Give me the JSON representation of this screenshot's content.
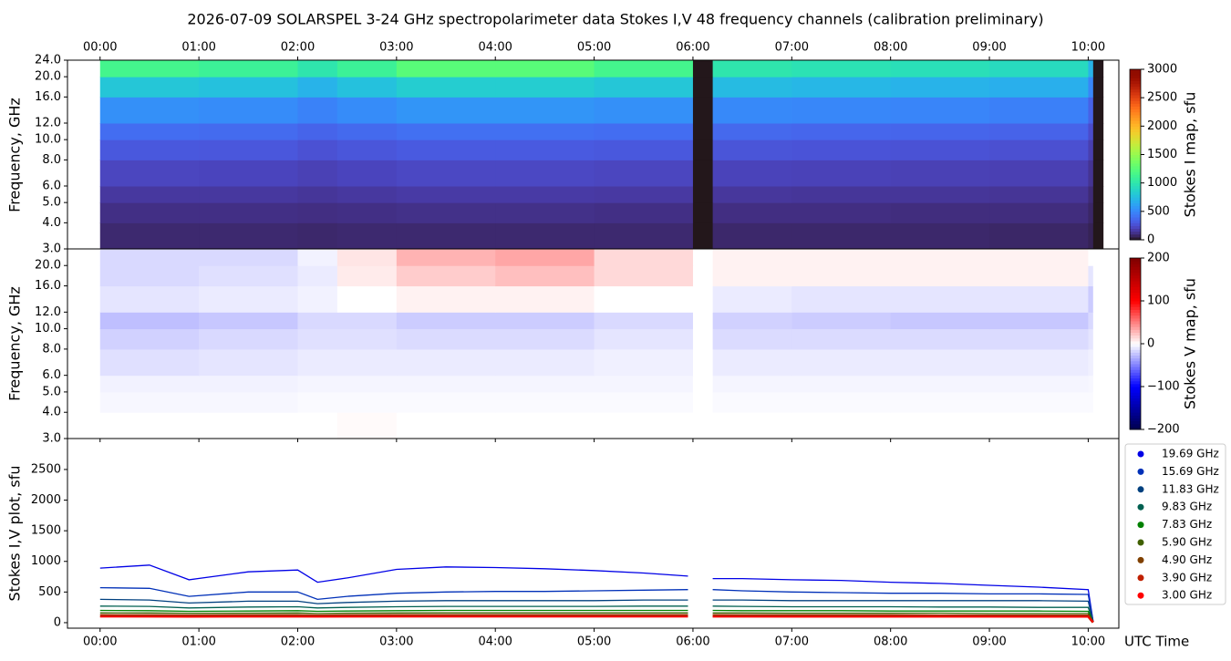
{
  "title": "2026-07-09  SOLARSPEL  3-24 GHz spectropolarimeter data   Stokes I,V   48 frequency channels   (calibration preliminary)",
  "chart_data": [
    {
      "type": "heatmap",
      "ylabel": "Frequency, GHz",
      "yscale": "log",
      "ylim": [
        3,
        24
      ],
      "yticks": [
        {
          "value": 3,
          "label": "3.0"
        },
        {
          "value": 4,
          "label": "4.0"
        },
        {
          "value": 5,
          "label": "5.0"
        },
        {
          "value": 6,
          "label": "6.0"
        },
        {
          "value": 8,
          "label": "8.0"
        },
        {
          "value": 10,
          "label": "10.0"
        },
        {
          "value": 12,
          "label": "12.0"
        },
        {
          "value": 16,
          "label": "16.0"
        },
        {
          "value": 20,
          "label": "20.0"
        },
        {
          "value": 24,
          "label": "24.0"
        }
      ],
      "xlim": [
        -0.33,
        10.31
      ],
      "xtick_position": "top",
      "xticks": [
        {
          "value": 0,
          "label": "00:00"
        },
        {
          "value": 1,
          "label": "01:00"
        },
        {
          "value": 2,
          "label": "02:00"
        },
        {
          "value": 3,
          "label": "03:00"
        },
        {
          "value": 4,
          "label": "04:00"
        },
        {
          "value": 5,
          "label": "05:00"
        },
        {
          "value": 6,
          "label": "06:00"
        },
        {
          "value": 7,
          "label": "07:00"
        },
        {
          "value": 8,
          "label": "08:00"
        },
        {
          "value": 9,
          "label": "09:00"
        },
        {
          "value": 10,
          "label": "10:00"
        }
      ],
      "x_edges": [
        0,
        1,
        2,
        2.4,
        3,
        4,
        5,
        6,
        6.2,
        7,
        8,
        9,
        10,
        10.05,
        10.15
      ],
      "y_edges": [
        3,
        4,
        5,
        6,
        8,
        10,
        12,
        16,
        20,
        24
      ],
      "values": [
        [
          90,
          90,
          85,
          90,
          90,
          90,
          90,
          0,
          85,
          85,
          85,
          80,
          60,
          0
        ],
        [
          120,
          120,
          115,
          120,
          125,
          125,
          120,
          0,
          115,
          115,
          110,
          110,
          80,
          0
        ],
        [
          160,
          160,
          150,
          160,
          170,
          170,
          165,
          0,
          155,
          150,
          150,
          145,
          100,
          0
        ],
        [
          220,
          215,
          200,
          215,
          230,
          230,
          220,
          0,
          210,
          205,
          200,
          195,
          140,
          0
        ],
        [
          300,
          295,
          270,
          290,
          310,
          310,
          300,
          0,
          285,
          280,
          275,
          265,
          190,
          0
        ],
        [
          390,
          380,
          350,
          375,
          400,
          400,
          390,
          0,
          370,
          360,
          355,
          345,
          250,
          0
        ],
        [
          540,
          520,
          480,
          520,
          560,
          560,
          540,
          0,
          510,
          500,
          490,
          470,
          340,
          0
        ],
        [
          800,
          770,
          700,
          770,
          840,
          840,
          800,
          0,
          740,
          720,
          700,
          680,
          500,
          0
        ],
        [
          1150,
          1100,
          1000,
          1100,
          1250,
          1250,
          1150,
          0,
          1000,
          970,
          950,
          920,
          700,
          0
        ]
      ],
      "colorbar": {
        "label": "Stokes I map, sfu",
        "colormap": "turbo",
        "lim": [
          0,
          3000
        ],
        "ticks": [
          0,
          500,
          1000,
          1500,
          2000,
          2500,
          3000
        ]
      }
    },
    {
      "type": "heatmap",
      "ylabel": "Frequency, GHz",
      "yscale": "log",
      "ylim": [
        3,
        24
      ],
      "yticks": [
        {
          "value": 3,
          "label": "3.0"
        },
        {
          "value": 4,
          "label": "4.0"
        },
        {
          "value": 5,
          "label": "5.0"
        },
        {
          "value": 6,
          "label": "6.0"
        },
        {
          "value": 8,
          "label": "8.0"
        },
        {
          "value": 10,
          "label": "10.0"
        },
        {
          "value": 12,
          "label": "12.0"
        },
        {
          "value": 16,
          "label": "16.0"
        },
        {
          "value": 20,
          "label": "20.0"
        }
      ],
      "xlim": [
        -0.33,
        10.31
      ],
      "xtick_labels": false,
      "xticks": [
        0,
        1,
        2,
        3,
        4,
        5,
        6,
        7,
        8,
        9,
        10
      ],
      "x_edges": [
        0,
        1,
        2,
        2.4,
        3,
        4,
        5,
        6,
        6.2,
        7,
        8,
        9,
        10,
        10.05,
        10.15
      ],
      "y_edges": [
        3,
        4,
        5,
        6,
        8,
        10,
        12,
        16,
        20,
        24
      ],
      "values": [
        [
          0,
          0,
          0,
          2,
          0,
          0,
          0,
          0,
          0,
          0,
          0,
          0,
          0,
          0
        ],
        [
          -3,
          -3,
          -2,
          -2,
          -2,
          -2,
          -2,
          0,
          -2,
          -2,
          -2,
          -2,
          -2,
          0
        ],
        [
          -5,
          -5,
          -4,
          -4,
          -4,
          -4,
          -4,
          0,
          -4,
          -4,
          -4,
          -4,
          -3,
          0
        ],
        [
          -12,
          -10,
          -8,
          -8,
          -8,
          -8,
          -6,
          0,
          -8,
          -8,
          -8,
          -8,
          -6,
          0
        ],
        [
          -18,
          -15,
          -12,
          -12,
          -14,
          -14,
          -10,
          0,
          -14,
          -14,
          -14,
          -14,
          -10,
          0
        ],
        [
          -25,
          -22,
          -15,
          -15,
          -20,
          -20,
          -15,
          0,
          -18,
          -20,
          -22,
          -22,
          -15,
          0
        ],
        [
          -10,
          -8,
          -5,
          0,
          5,
          5,
          0,
          0,
          -8,
          -10,
          -10,
          -10,
          -20,
          0
        ],
        [
          -15,
          -12,
          -8,
          8,
          20,
          25,
          15,
          0,
          5,
          5,
          5,
          5,
          -10,
          0
        ],
        [
          -15,
          -15,
          -5,
          10,
          30,
          35,
          15,
          0,
          5,
          5,
          5,
          5,
          0,
          0
        ]
      ],
      "colorbar": {
        "label": "Stokes V map, sfu",
        "colormap": "seismic",
        "lim": [
          -200,
          200
        ],
        "ticks": [
          {
            "value": -200,
            "label": "−200"
          },
          {
            "value": -100,
            "label": "−100"
          },
          0,
          100,
          200
        ]
      }
    },
    {
      "type": "line",
      "ylabel": "Stokes I,V plot, sfu",
      "xlabel": "UTC Time",
      "legend": "outside right",
      "ylim": [
        -90,
        3005
      ],
      "yticks": [
        0,
        500,
        1000,
        1500,
        2000,
        2500
      ],
      "xlim": [
        -0.33,
        10.31
      ],
      "xtick_position": "bottom",
      "xticks": [
        {
          "value": 0,
          "label": "00:00"
        },
        {
          "value": 1,
          "label": "01:00"
        },
        {
          "value": 2,
          "label": "02:00"
        },
        {
          "value": 3,
          "label": "03:00"
        },
        {
          "value": 4,
          "label": "04:00"
        },
        {
          "value": 5,
          "label": "05:00"
        },
        {
          "value": 6,
          "label": "06:00"
        },
        {
          "value": 7,
          "label": "07:00"
        },
        {
          "value": 8,
          "label": "08:00"
        },
        {
          "value": 9,
          "label": "09:00"
        },
        {
          "value": 10,
          "label": "10:00"
        }
      ],
      "x": [
        0,
        0.5,
        0.9,
        1.5,
        2,
        2.2,
        2.5,
        3,
        3.5,
        4,
        4.5,
        5,
        5.5,
        5.95,
        6.1,
        6.2,
        6.5,
        7,
        7.5,
        8,
        8.5,
        9,
        9.5,
        10,
        10.05
      ],
      "series": [
        {
          "name": "19.69 GHz",
          "color": "#0000e6",
          "values": [
            890,
            940,
            700,
            830,
            860,
            660,
            730,
            870,
            910,
            900,
            880,
            850,
            810,
            760,
            null,
            720,
            720,
            700,
            690,
            660,
            640,
            610,
            580,
            540,
            20
          ]
        },
        {
          "name": "15.69 GHz",
          "color": "#0030b8",
          "values": [
            570,
            560,
            430,
            500,
            500,
            380,
            430,
            480,
            500,
            510,
            510,
            520,
            530,
            540,
            null,
            540,
            520,
            500,
            490,
            480,
            480,
            470,
            470,
            460,
            20
          ]
        },
        {
          "name": "11.83 GHz",
          "color": "#00407f",
          "values": [
            380,
            370,
            320,
            350,
            350,
            310,
            330,
            350,
            360,
            360,
            360,
            360,
            370,
            370,
            null,
            370,
            370,
            360,
            360,
            360,
            360,
            360,
            360,
            350,
            10
          ]
        },
        {
          "name": "9.83 GHz",
          "color": "#006050",
          "values": [
            270,
            265,
            240,
            255,
            260,
            240,
            250,
            260,
            265,
            265,
            265,
            265,
            270,
            270,
            null,
            270,
            265,
            260,
            260,
            260,
            255,
            255,
            250,
            250,
            10
          ]
        },
        {
          "name": "7.83 GHz",
          "color": "#008000",
          "values": [
            200,
            195,
            185,
            190,
            195,
            185,
            190,
            195,
            200,
            200,
            200,
            200,
            200,
            200,
            null,
            200,
            195,
            195,
            195,
            190,
            190,
            190,
            190,
            185,
            10
          ]
        },
        {
          "name": "5.90 GHz",
          "color": "#406000",
          "values": [
            160,
            158,
            152,
            155,
            158,
            150,
            155,
            158,
            160,
            160,
            160,
            160,
            160,
            160,
            null,
            158,
            158,
            155,
            155,
            155,
            155,
            150,
            150,
            150,
            10
          ]
        },
        {
          "name": "4.90 GHz",
          "color": "#804000",
          "values": [
            130,
            128,
            125,
            128,
            128,
            125,
            128,
            130,
            130,
            130,
            130,
            130,
            130,
            130,
            null,
            130,
            128,
            128,
            128,
            128,
            125,
            125,
            125,
            125,
            5
          ]
        },
        {
          "name": "3.90 GHz",
          "color": "#c02000",
          "values": [
            110,
            108,
            106,
            108,
            108,
            106,
            108,
            110,
            110,
            110,
            110,
            110,
            110,
            110,
            null,
            108,
            108,
            106,
            106,
            106,
            106,
            106,
            105,
            105,
            5
          ]
        },
        {
          "name": "3.00 GHz",
          "color": "#ff0000",
          "values": [
            95,
            95,
            92,
            95,
            95,
            93,
            95,
            95,
            95,
            95,
            95,
            95,
            95,
            95,
            null,
            95,
            95,
            93,
            93,
            93,
            93,
            93,
            92,
            92,
            5
          ]
        }
      ]
    }
  ]
}
